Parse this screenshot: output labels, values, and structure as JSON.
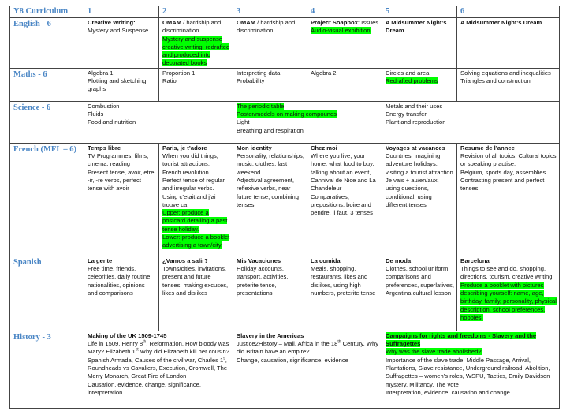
{
  "header": {
    "title": "Y8 Curriculum",
    "terms": [
      "1",
      "2",
      "3",
      "4",
      "5",
      "6"
    ]
  },
  "colors": {
    "subject_text": "#4a86c5",
    "highlight": "#00ff00",
    "border": "#444444"
  },
  "rows": [
    {
      "subject": "English - 6",
      "cells": [
        {
          "span": 1,
          "lines": [
            [
              {
                "t": "Creative Writing:",
                "b": true
              }
            ],
            [
              {
                "t": "Mystery and Suspense"
              }
            ]
          ]
        },
        {
          "span": 1,
          "lines": [
            [
              {
                "t": "OMAM",
                "b": true
              },
              {
                "t": " / hardship and discrimination"
              }
            ],
            [
              {
                "t": "Mystery and suspense creative writing, redrafted and produced into decorated books",
                "h": true
              }
            ]
          ]
        },
        {
          "span": 1,
          "lines": [
            [
              {
                "t": "OMAM",
                "b": true
              },
              {
                "t": " / hardship and discrimination"
              }
            ]
          ]
        },
        {
          "span": 1,
          "lines": [
            [
              {
                "t": "Project Soapbox",
                "b": true
              },
              {
                "t": ": Issues"
              }
            ],
            [
              {
                "t": "Audio-visual exhibition",
                "h": true
              }
            ]
          ]
        },
        {
          "span": 1,
          "lines": [
            [
              {
                "t": "A Midsummer Night’s Dream",
                "b": true
              }
            ]
          ]
        },
        {
          "span": 1,
          "lines": [
            [
              {
                "t": "A Midsummer Night’s Dream",
                "b": true
              }
            ]
          ]
        }
      ]
    },
    {
      "subject": "Maths - 6",
      "cells": [
        {
          "span": 1,
          "lines": [
            [
              {
                "t": "Algebra 1"
              }
            ],
            [
              {
                "t": "Plotting and sketching graphs"
              }
            ]
          ]
        },
        {
          "span": 1,
          "lines": [
            [
              {
                "t": "Proportion 1"
              }
            ],
            [
              {
                "t": "Ratio"
              }
            ]
          ]
        },
        {
          "span": 1,
          "lines": [
            [
              {
                "t": "Interpreting data"
              }
            ],
            [
              {
                "t": "Probability"
              }
            ]
          ]
        },
        {
          "span": 1,
          "lines": [
            [
              {
                "t": "Algebra 2"
              }
            ]
          ]
        },
        {
          "span": 1,
          "lines": [
            [
              {
                "t": "Circles and area"
              }
            ],
            [
              {
                "t": "Redrafted problems",
                "h": true
              }
            ]
          ]
        },
        {
          "span": 1,
          "lines": [
            [
              {
                "t": "Solving equations and inequalities"
              }
            ],
            [
              {
                "t": "Triangles and construction"
              }
            ]
          ]
        }
      ]
    },
    {
      "subject": "Science - 6",
      "cells": [
        {
          "span": 2,
          "lines": [
            [
              {
                "t": "Combustion"
              }
            ],
            [
              {
                "t": "Fluids"
              }
            ],
            [
              {
                "t": "Food and nutrition"
              }
            ]
          ]
        },
        {
          "span": 2,
          "lines": [
            [
              {
                "t": "The periodic table",
                "h": true
              }
            ],
            [
              {
                "t": "Poster/models on making compounds",
                "h": true
              }
            ],
            [
              {
                "t": "Light"
              }
            ],
            [
              {
                "t": "Breathing and respiration"
              }
            ]
          ]
        },
        {
          "span": 2,
          "lines": [
            [
              {
                "t": "Metals and their uses"
              }
            ],
            [
              {
                "t": "Energy transfer"
              }
            ],
            [
              {
                "t": "Plant and reproduction"
              }
            ]
          ]
        }
      ]
    },
    {
      "subject": "French (MFL – 6)",
      "cells": [
        {
          "span": 1,
          "lines": [
            [
              {
                "t": "Temps libre",
                "b": true
              }
            ],
            [
              {
                "t": "TV Programmes, films, cinema, reading"
              }
            ],
            [
              {
                "t": "Present tense, avoir, etre, -ir, -re verbs, perfect tense with avoir"
              }
            ]
          ]
        },
        {
          "span": 1,
          "lines": [
            [
              {
                "t": "Paris, je t’adore",
                "b": true
              }
            ],
            [
              {
                "t": "When you did things, tourist attractions."
              }
            ],
            [
              {
                "t": "French revolution"
              }
            ],
            [
              {
                "t": "Perfect tense of regular and irregular verbs."
              }
            ],
            [
              {
                "t": "Using c’etait and j’ai trouve ca"
              }
            ],
            [
              {
                "t": "Upper: produce a postcard  detailing a past tense holiday.",
                "h": true
              }
            ],
            [
              {
                "t": "Lower: produce a booklet advertising a town/city.",
                "h": true
              }
            ]
          ]
        },
        {
          "span": 1,
          "lines": [
            [
              {
                "t": "Mon identity",
                "b": true
              }
            ],
            [
              {
                "t": "Personality, relationships, music, clothes, last weekend"
              }
            ],
            [
              {
                "t": "Adjectival agreement, reflexive verbs, near future tense, combining tenses"
              }
            ]
          ]
        },
        {
          "span": 1,
          "lines": [
            [
              {
                "t": "Chez moi",
                "b": true
              }
            ],
            [
              {
                "t": "Where you live, your home, what food to buy, talking about an event, Cannival de Nice and La Chandeleur"
              }
            ],
            [
              {
                "t": "Comparatives, prepositions, boire and pendre, il faut, 3 tenses"
              }
            ]
          ]
        },
        {
          "span": 1,
          "lines": [
            [
              {
                "t": "Voyages at vacances",
                "b": true
              }
            ],
            [
              {
                "t": "Countries, imagining adventure holidays, visiting a tourist attraction"
              }
            ],
            [
              {
                "t": "Je vais + au/en/aux, using questions, conditional, using different tenses"
              }
            ]
          ]
        },
        {
          "span": 1,
          "lines": [
            [
              {
                "t": "Resume de l’annee",
                "b": true
              }
            ],
            [
              {
                "t": "Revision of all topics. Cultural topics or speaking practise."
              }
            ],
            [
              {
                "t": "Belgium, sports day, assemblies"
              }
            ],
            [
              {
                "t": "Contrasting present and perfect tenses"
              }
            ]
          ]
        }
      ]
    },
    {
      "subject": "Spanish",
      "cells": [
        {
          "span": 1,
          "lines": [
            [
              {
                "t": "La gente",
                "b": true
              }
            ],
            [
              {
                "t": "Free time, friends, celebrities, daily routine, nationalities, opinions and comparisons"
              }
            ]
          ]
        },
        {
          "span": 1,
          "lines": [
            [
              {
                "t": "¿Vamos a salir?",
                "b": true
              }
            ],
            [
              {
                "t": "Towns/cities, invitations, present and future tenses, making excuses, likes and dislikes"
              }
            ]
          ]
        },
        {
          "span": 1,
          "lines": [
            [
              {
                "t": "Mis Vacaciones",
                "b": true
              }
            ],
            [
              {
                "t": "Holiday accounts, transport, activities, preterite tense, presentations"
              }
            ]
          ]
        },
        {
          "span": 1,
          "lines": [
            [
              {
                "t": "La comida",
                "b": true
              }
            ],
            [
              {
                "t": "Meals, shopping, restaurants, likes and dislikes, using high numbers, preterite tense"
              }
            ]
          ]
        },
        {
          "span": 1,
          "lines": [
            [
              {
                "t": "De moda",
                "b": true
              }
            ],
            [
              {
                "t": "Clothes, school uniform, comparisons and preferences, superlatives, Argentina cultural lesson"
              }
            ]
          ]
        },
        {
          "span": 1,
          "lines": [
            [
              {
                "t": "Barcelona",
                "b": true
              }
            ],
            [
              {
                "t": "Things to see and do, shopping, directions, tourism, creative writing"
              }
            ],
            [
              {
                "t": "Produce a booklet with pictures describing yourself: name, age, birthday, family, personality, physical description, school preferences, hobbies.",
                "h": true
              }
            ]
          ]
        }
      ]
    },
    {
      "subject": "History - 3",
      "cells": [
        {
          "span": 2,
          "lines": [
            [
              {
                "t": "Making of the UK 1509-1745",
                "b": true
              }
            ],
            [
              {
                "t": "Life in 1509, Henry 8"
              },
              {
                "t": "th",
                "s": true
              },
              {
                "t": ", Reformation, How bloody was Mary? Elizabeth 1"
              },
              {
                "t": "st",
                "s": true
              },
              {
                "t": " Why did Elizabeth kill her cousin? Spanish Armada, Causes of the civil war, Charles 1"
              },
              {
                "t": "s",
                "s": true
              },
              {
                "t": ", Roundheads vs Cavaliers, Execution, Cromwell, The Merry Monarch, Great Fire of London"
              }
            ],
            [
              {
                "t": "Causation, evidence, change, significance, interpretation"
              }
            ]
          ]
        },
        {
          "span": 2,
          "lines": [
            [
              {
                "t": "Slavery in the Americas",
                "b": true
              }
            ],
            [
              {
                "t": "Justice2History – Mali, Africa in the 18"
              },
              {
                "t": "th",
                "s": true
              },
              {
                "t": " Century, Why did Britain have an empire?"
              }
            ],
            [
              {
                "t": "Change, causation, significance, evidence"
              }
            ]
          ]
        },
        {
          "span": 2,
          "lines": [
            [
              {
                "t": "Campaigns for rights and freedoms - Slavery and the Suffragettes",
                "b": true,
                "h": true
              }
            ],
            [
              {
                "t": "Why was the slave trade abolished?",
                "h": true
              }
            ],
            [
              {
                "t": "Importance of the slave trade, Middle Passage, Arrival, Plantations, Slave resistance, Underground railroad, Abolition, Suffragettes – women’s roles, WSPU, Tactics, Emily Davidson mystery, Militancy, The vote"
              }
            ],
            [
              {
                "t": "Interpretation, evidence, causation and change"
              }
            ]
          ]
        }
      ]
    }
  ]
}
